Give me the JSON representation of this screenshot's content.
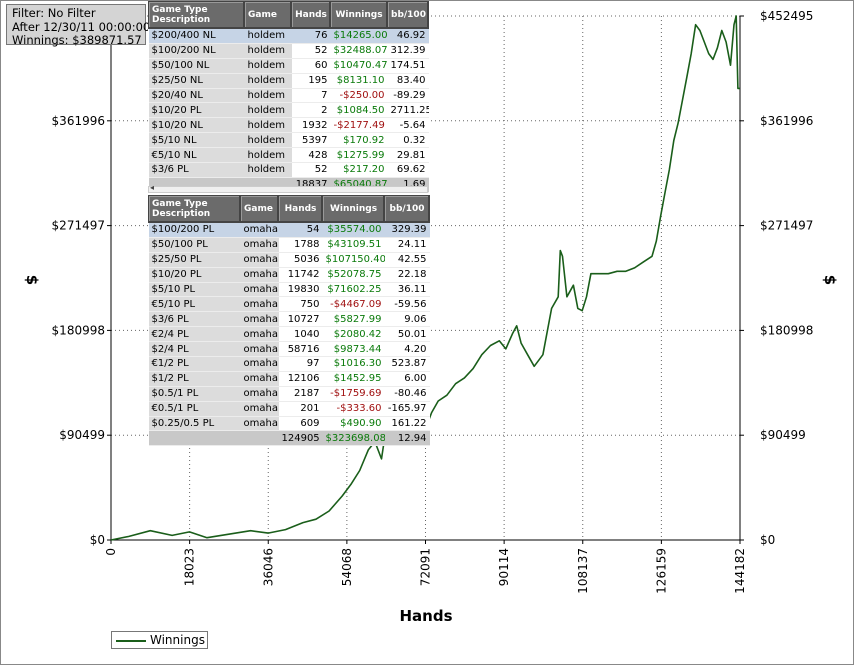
{
  "filter": {
    "line1": "Filter: No Filter",
    "line2": "After 12/30/11 00:00:00",
    "line3": "Winnings: $389871.57"
  },
  "legend": {
    "label": "Winnings",
    "color": "#1a5e1a"
  },
  "chart_data": {
    "type": "line",
    "title": "",
    "xlabel": "Hands",
    "ylabel": "$",
    "xlim": [
      0,
      144182
    ],
    "ylim": [
      0,
      452495
    ],
    "x_ticks": [
      0,
      18023,
      36046,
      54068,
      72091,
      90114,
      108137,
      126159,
      144182
    ],
    "x_tick_labels": [
      "0",
      "18023",
      "36046",
      "54068",
      "72091",
      "90114",
      "108137",
      "126159",
      "144182"
    ],
    "y_ticks": [
      0,
      90499,
      180998,
      271497,
      361996,
      452495
    ],
    "y_tick_labels": [
      "$0",
      "$90499",
      "$180998",
      "$271497",
      "$361996",
      "$452495"
    ],
    "grid": true,
    "legend_position": "bottom-left",
    "series": [
      {
        "name": "Winnings",
        "color": "#1a5e1a",
        "x": [
          0,
          4000,
          9000,
          14000,
          18000,
          22000,
          27000,
          32000,
          36000,
          40000,
          44000,
          47000,
          50000,
          53000,
          55000,
          57000,
          59000,
          60500,
          62000,
          63000,
          64500,
          66000,
          67500,
          69000,
          70500,
          72000,
          73500,
          75000,
          77000,
          79000,
          81000,
          83000,
          85000,
          87000,
          89000,
          90500,
          92000,
          93000,
          94000,
          95500,
          97000,
          99000,
          101000,
          102500,
          103000,
          103500,
          104500,
          106000,
          107000,
          108000,
          109000,
          110000,
          112000,
          114000,
          116000,
          118000,
          120000,
          122000,
          124000,
          125000,
          126000,
          127000,
          128000,
          129000,
          130000,
          131000,
          132000,
          133000,
          134000,
          135000,
          136000,
          137000,
          138000,
          139000,
          140000,
          141000,
          142000,
          142800,
          143300,
          143700,
          144182
        ],
        "y": [
          0,
          3000,
          8000,
          4000,
          7000,
          2000,
          5000,
          8000,
          6000,
          9000,
          15000,
          18000,
          25000,
          38000,
          48000,
          60000,
          78000,
          85000,
          70000,
          95000,
          110000,
          100000,
          118000,
          105000,
          112000,
          95000,
          110000,
          120000,
          125000,
          135000,
          140000,
          148000,
          160000,
          168000,
          172000,
          165000,
          178000,
          185000,
          170000,
          160000,
          150000,
          160000,
          200000,
          210000,
          250000,
          245000,
          210000,
          220000,
          200000,
          198000,
          210000,
          230000,
          230000,
          230000,
          232000,
          232000,
          235000,
          240000,
          245000,
          258000,
          280000,
          300000,
          320000,
          345000,
          360000,
          380000,
          400000,
          420000,
          445000,
          440000,
          430000,
          420000,
          415000,
          425000,
          440000,
          430000,
          410000,
          445000,
          452495,
          390000,
          390000
        ]
      }
    ]
  },
  "holdem_table": {
    "headers": [
      "Game Type Description",
      "Game",
      "Hands",
      "Winnings",
      "bb/100"
    ],
    "rows": [
      [
        "$200/400 NL",
        "holdem",
        "76",
        "$14265.00",
        "46.92"
      ],
      [
        "$100/200 NL",
        "holdem",
        "52",
        "$32488.07",
        "312.39"
      ],
      [
        "$50/100 NL",
        "holdem",
        "60",
        "$10470.47",
        "174.51"
      ],
      [
        "$25/50 NL",
        "holdem",
        "195",
        "$8131.10",
        "83.40"
      ],
      [
        "$20/40 NL",
        "holdem",
        "7",
        "-$250.00",
        "-89.29"
      ],
      [
        "$10/20 PL",
        "holdem",
        "2",
        "$1084.50",
        "2711.25"
      ],
      [
        "$10/20 NL",
        "holdem",
        "1932",
        "-$2177.49",
        "-5.64"
      ],
      [
        "$5/10 NL",
        "holdem",
        "5397",
        "$170.92",
        "0.32"
      ],
      [
        "€5/10 NL",
        "holdem",
        "428",
        "$1275.99",
        "29.81"
      ],
      [
        "$3/6 PL",
        "holdem",
        "52",
        "$217.20",
        "69.62"
      ]
    ],
    "totals": [
      "",
      "",
      "18837",
      "$65040.87",
      "1.69"
    ]
  },
  "omaha_table": {
    "headers": [
      "Game Type Description",
      "Game",
      "Hands",
      "Winnings",
      "bb/100"
    ],
    "rows": [
      [
        "$100/200 PL",
        "omaha",
        "54",
        "$35574.00",
        "329.39"
      ],
      [
        "$50/100 PL",
        "omaha",
        "1788",
        "$43109.51",
        "24.11"
      ],
      [
        "$25/50 PL",
        "omaha",
        "5036",
        "$107150.40",
        "42.55"
      ],
      [
        "$10/20 PL",
        "omaha",
        "11742",
        "$52078.75",
        "22.18"
      ],
      [
        "$5/10 PL",
        "omaha",
        "19830",
        "$71602.25",
        "36.11"
      ],
      [
        "€5/10 PL",
        "omaha",
        "750",
        "-$4467.09",
        "-59.56"
      ],
      [
        "$3/6 PL",
        "omaha",
        "10727",
        "$5827.99",
        "9.06"
      ],
      [
        "€2/4 PL",
        "omaha",
        "1040",
        "$2080.42",
        "50.01"
      ],
      [
        "$2/4 PL",
        "omaha",
        "58716",
        "$9873.44",
        "4.20"
      ],
      [
        "€1/2 PL",
        "omaha",
        "97",
        "$1016.30",
        "523.87"
      ],
      [
        "$1/2 PL",
        "omaha",
        "12106",
        "$1452.95",
        "6.00"
      ],
      [
        "$0.5/1 PL",
        "omaha",
        "2187",
        "-$1759.69",
        "-80.46"
      ],
      [
        "€0.5/1 PL",
        "omaha",
        "201",
        "-$333.60",
        "-165.97"
      ],
      [
        "$0.25/0.5 PL",
        "omaha",
        "609",
        "$490.90",
        "161.22"
      ]
    ],
    "totals": [
      "",
      "",
      "124905",
      "$323698.08",
      "12.94"
    ]
  }
}
